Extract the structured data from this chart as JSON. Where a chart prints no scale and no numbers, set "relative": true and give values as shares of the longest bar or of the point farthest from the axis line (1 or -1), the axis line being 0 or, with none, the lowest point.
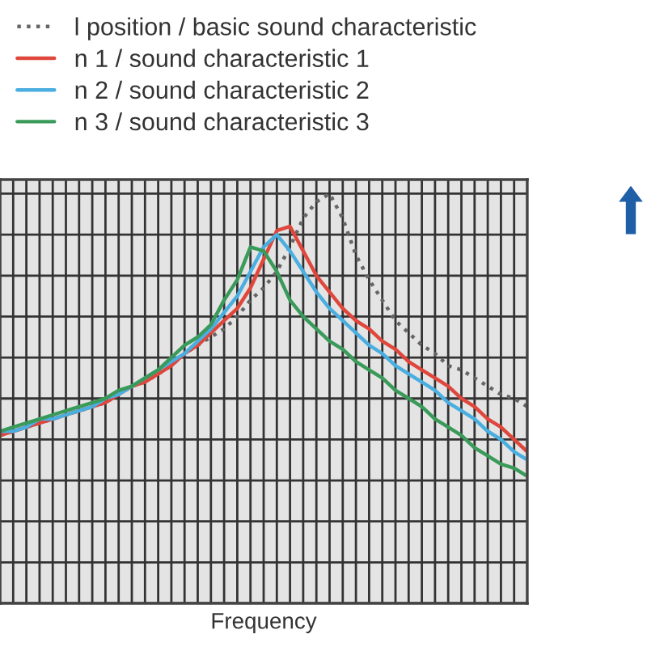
{
  "chart_data": {
    "type": "line",
    "relative": true,
    "xlabel": "Frequency",
    "tick_labels": false,
    "grid": true,
    "legend": "top left",
    "categories": [
      null,
      null,
      null,
      null,
      null,
      null,
      null,
      null,
      null,
      null,
      null,
      null,
      null,
      null,
      null,
      null,
      null,
      null,
      null,
      null,
      null,
      null,
      null,
      null,
      null,
      null,
      null,
      null,
      null,
      null,
      null,
      null,
      null,
      null,
      null,
      null,
      null,
      null,
      null,
      null,
      null
    ],
    "series": [
      {
        "name": "l position / basic sound characteristic",
        "color": "#666666",
        "line_style": "dotted",
        "values": [
          0.41,
          0.42,
          0.43,
          0.44,
          0.45,
          0.46,
          0.47,
          0.48,
          0.49,
          0.51,
          0.53,
          0.54,
          0.56,
          0.58,
          0.61,
          0.63,
          0.65,
          0.67,
          0.7,
          0.74,
          0.77,
          0.81,
          0.87,
          0.94,
          0.98,
          1.0,
          0.94,
          0.85,
          0.79,
          0.74,
          0.69,
          0.66,
          0.63,
          0.61,
          0.58,
          0.57,
          0.55,
          0.53,
          0.51,
          0.5,
          0.48
        ]
      },
      {
        "name": "n 1 / sound characteristic 1",
        "color": "#e0473c",
        "line_style": "solid",
        "values": [
          0.41,
          0.42,
          0.43,
          0.44,
          0.45,
          0.46,
          0.47,
          0.48,
          0.49,
          0.51,
          0.53,
          0.54,
          0.56,
          0.58,
          0.61,
          0.63,
          0.66,
          0.69,
          0.72,
          0.77,
          0.84,
          0.91,
          0.92,
          0.86,
          0.8,
          0.76,
          0.72,
          0.69,
          0.67,
          0.64,
          0.62,
          0.59,
          0.57,
          0.55,
          0.53,
          0.5,
          0.48,
          0.45,
          0.43,
          0.4,
          0.37
        ]
      },
      {
        "name": "n 2 / sound characteristic 2",
        "color": "#4aaee0",
        "line_style": "solid",
        "values": [
          0.42,
          0.42,
          0.43,
          0.45,
          0.45,
          0.46,
          0.47,
          0.48,
          0.5,
          0.51,
          0.53,
          0.55,
          0.57,
          0.59,
          0.61,
          0.64,
          0.67,
          0.71,
          0.75,
          0.81,
          0.87,
          0.9,
          0.86,
          0.81,
          0.76,
          0.72,
          0.69,
          0.66,
          0.63,
          0.61,
          0.58,
          0.56,
          0.54,
          0.52,
          0.49,
          0.47,
          0.45,
          0.42,
          0.4,
          0.37,
          0.35
        ]
      },
      {
        "name": "n 3 / sound characteristic 3",
        "color": "#3a9a5a",
        "line_style": "solid",
        "values": [
          0.42,
          0.43,
          0.44,
          0.45,
          0.46,
          0.47,
          0.48,
          0.49,
          0.5,
          0.52,
          0.53,
          0.55,
          0.57,
          0.6,
          0.63,
          0.65,
          0.68,
          0.74,
          0.79,
          0.87,
          0.86,
          0.81,
          0.74,
          0.7,
          0.67,
          0.64,
          0.62,
          0.59,
          0.57,
          0.55,
          0.52,
          0.5,
          0.48,
          0.45,
          0.43,
          0.41,
          0.38,
          0.36,
          0.34,
          0.33,
          0.31
        ]
      }
    ]
  }
}
